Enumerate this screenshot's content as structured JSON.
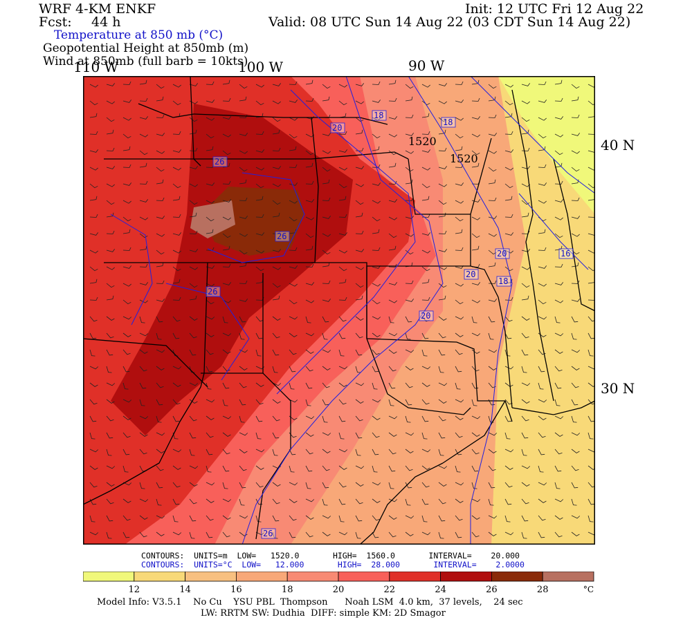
{
  "header": {
    "model": "WRF 4-KM ENKF",
    "init": "Init: 12 UTC Fri 12 Aug 22",
    "fcst_label": "Fcst:",
    "fcst_value": "44 h",
    "valid": "Valid: 08 UTC Sun 14 Aug 22 (03 CDT Sun 14 Aug 22)",
    "field1": "Temperature at 850 mb (°C)",
    "field2": "Geopotential Height at 850mb (m)",
    "field3": "Wind at 850mb (full barb = 10kts)"
  },
  "map": {
    "lon_labels": [
      "110 W",
      "100 W",
      "90 W"
    ],
    "lat_labels": [
      "40 N",
      "30 N"
    ],
    "temp_contour_labels": [
      "18",
      "18",
      "20",
      "20",
      "20",
      "20",
      "18",
      "16",
      "26",
      "26",
      "26",
      "26"
    ],
    "height_contour_labels": [
      "1520",
      "1520"
    ],
    "colors": {
      "t12": "#f0f87a",
      "t14": "#f8d978",
      "t16": "#f8c080",
      "t18": "#f8a878",
      "t20": "#f88a74",
      "t22": "#f8605a",
      "t24": "#e03028",
      "t26": "#b00e0e",
      "t28": "#8a2a08",
      "t30": "#b87060",
      "contour": "#2020e0",
      "border": "#000000"
    }
  },
  "contour_info": {
    "line1": "CONTOURS:  UNITS=m  LOW=   1520.0       HIGH=  1560.0       INTERVAL=    20.000",
    "line2": "CONTOURS:  UNITS=°C  LOW=   12.000       HIGH=  28.000       INTERVAL=    2.0000"
  },
  "colorbar": {
    "ticks": [
      "12",
      "14",
      "16",
      "18",
      "20",
      "22",
      "24",
      "26",
      "28"
    ],
    "units": "°C",
    "colors": [
      "#f0f87a",
      "#f8d978",
      "#f8c080",
      "#f8a878",
      "#f88a74",
      "#f8605a",
      "#e03028",
      "#b00e0e",
      "#8a2a08",
      "#b87060"
    ]
  },
  "footer": {
    "line1": "Model Info: V3.5.1    No Cu    YSU PBL  Thompson      Noah LSM  4.0 km,  37 levels,    24 sec",
    "line2": "LW: RRTM SW: Dudhia  DIFF: simple KM: 2D Smagor"
  }
}
